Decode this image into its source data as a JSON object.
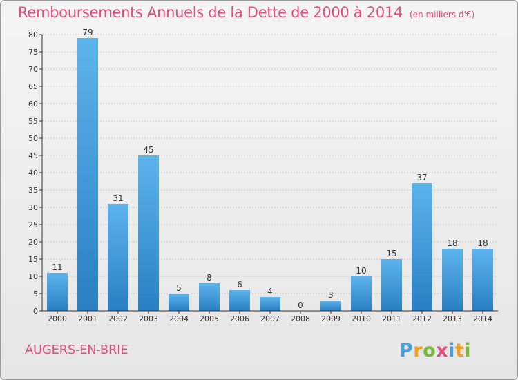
{
  "header": {
    "title": "Remboursements Annuels de la Dette de 2000 à 2014",
    "subtitle": "(en milliers d'€)"
  },
  "footer": {
    "commune": "AUGERS-EN-BRIE",
    "logo_text": "Proxiti"
  },
  "colors": {
    "accent": "#e0507a",
    "bar_light": "#5db3ec",
    "bar_dark": "#2a7fc2",
    "grid": "#cccccc",
    "axis": "#333333"
  },
  "chart_data": {
    "type": "bar",
    "title": "Remboursements Annuels de la Dette de 2000 à 2014",
    "subtitle": "(en milliers d'€)",
    "categories": [
      "2000",
      "2001",
      "2002",
      "2003",
      "2004",
      "2005",
      "2006",
      "2007",
      "2008",
      "2009",
      "2010",
      "2011",
      "2012",
      "2013",
      "2014"
    ],
    "values": [
      11,
      79,
      31,
      45,
      5,
      8,
      6,
      4,
      0,
      3,
      10,
      15,
      37,
      18,
      18
    ],
    "ylim": [
      0,
      80
    ],
    "yticks": [
      0,
      5,
      10,
      15,
      20,
      25,
      30,
      35,
      40,
      45,
      50,
      55,
      60,
      65,
      70,
      75,
      80
    ],
    "xlabel": "",
    "ylabel": "",
    "grid": true,
    "legend": "none",
    "data_labels": true
  }
}
